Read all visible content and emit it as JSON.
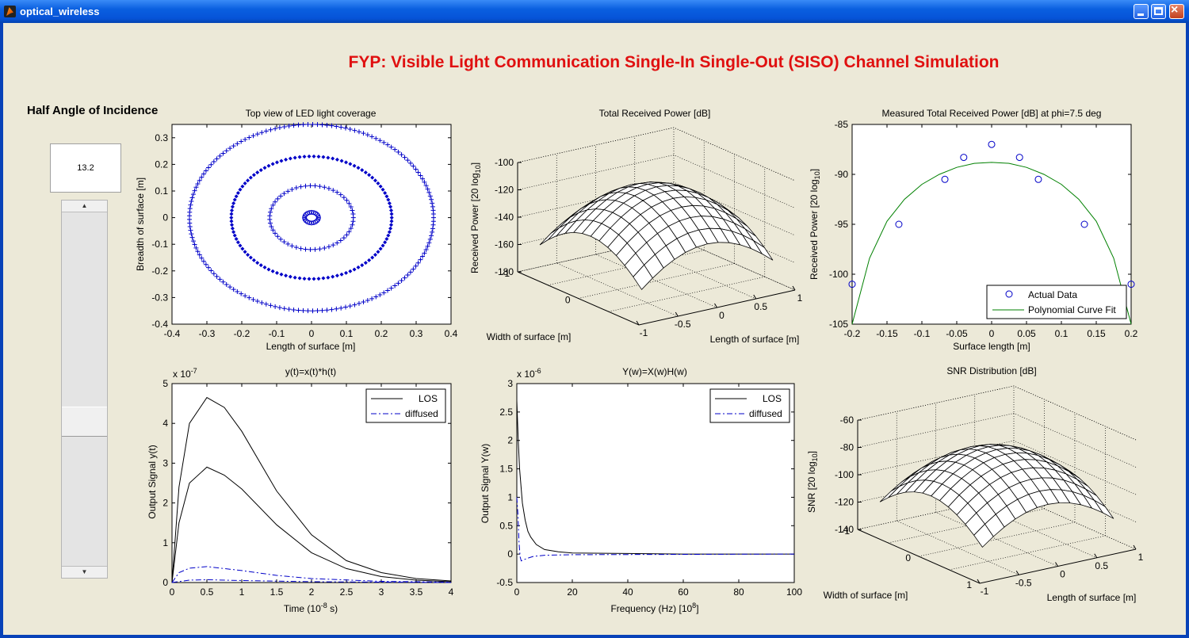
{
  "window": {
    "title": "optical_wireless"
  },
  "header": {
    "title": "FYP: Visible Light Communication Single-In Single-Out (SISO) Channel Simulation"
  },
  "controls": {
    "half_angle_label": "Half Angle of Incidence",
    "half_angle_value": "13.2",
    "slider_up": "▲",
    "slider_down": "▼"
  },
  "colors": {
    "title": "#e01010",
    "marker": "#0000c8",
    "fit_line": "#008000",
    "background": "#ece9d8"
  },
  "plots": {
    "coverage": {
      "title": "Top view of LED light coverage",
      "xlabel": "Length of surface [m]",
      "ylabel": "Breadth of surface [m]",
      "xticks": [
        "-0.4",
        "-0.3",
        "-0.2",
        "-0.1",
        "0",
        "0.1",
        "0.2",
        "0.3",
        "0.4"
      ],
      "yticks": [
        "0.3",
        "0.2",
        "0.1",
        "0",
        "-0.1",
        "-0.2",
        "-0.3",
        "-0.4"
      ]
    },
    "total_power": {
      "title": "Total Received Power [dB]",
      "ylabel": "Received Power [20 log",
      "ylabel_sub": "10",
      "ylabel_end": "]",
      "xlabel": "Length of surface [m]",
      "wlabel": "Width of surface [m]",
      "zticks": [
        "-100",
        "-120",
        "-140",
        "-160",
        "-180"
      ],
      "xticks": [
        "1",
        "0.5",
        "0",
        "-0.5",
        "-1"
      ],
      "wticks": [
        "0",
        "-1"
      ]
    },
    "measured": {
      "title": "Measured Total Received Power [dB] at phi=7.5 deg",
      "xlabel": "Surface length [m]",
      "ylabel": "Received Power [20 log",
      "ylabel_sub": "10",
      "ylabel_end": "]",
      "xticks": [
        "-0.2",
        "-0.15",
        "-0.1",
        "-0.05",
        "0",
        "0.05",
        "0.1",
        "0.15",
        "0.2"
      ],
      "yticks": [
        "-85",
        "-90",
        "-95",
        "-100",
        "-105"
      ],
      "legend": [
        "Actual Data",
        "Polynomial Curve Fit"
      ]
    },
    "time": {
      "title": "y(t)=x(t)*h(t)",
      "xlabel": "Time (10",
      "xlabel_sup": "-8",
      "xlabel_end": " s)",
      "ylabel": "Output Signal y(t)",
      "exp_base": "x 10",
      "exp": "-7",
      "xticks": [
        "0",
        "0.5",
        "1",
        "1.5",
        "2",
        "2.5",
        "3",
        "3.5",
        "4"
      ],
      "yticks": [
        "5",
        "4",
        "3",
        "2",
        "1",
        "0"
      ],
      "legend": [
        "LOS",
        "diffused"
      ]
    },
    "freq": {
      "title": "Y(w)=X(w)H(w)",
      "xlabel": "Frequency (Hz) [10",
      "xlabel_sup": "8",
      "xlabel_end": "]",
      "ylabel": "Output Signal Y(w)",
      "exp_base": "x 10",
      "exp": "-6",
      "xticks": [
        "0",
        "20",
        "40",
        "60",
        "80",
        "100"
      ],
      "yticks": [
        "3",
        "2.5",
        "2",
        "1.5",
        "1",
        "0.5",
        "0",
        "-0.5"
      ],
      "legend": [
        "LOS",
        "diffused"
      ]
    },
    "snr": {
      "title": "SNR Distribution [dB]",
      "ylabel": "SNR [20 log",
      "ylabel_sub": "10",
      "ylabel_end": "]",
      "xlabel": "Length of surface [m]",
      "wlabel": "Width of surface [m]",
      "zticks": [
        "-60",
        "-80",
        "-100",
        "-120",
        "-140"
      ],
      "xticks": [
        "1",
        "0.5",
        "0",
        "-0.5",
        "-1"
      ],
      "wticks": [
        "1",
        "0",
        "-1"
      ]
    }
  },
  "chart_data": [
    {
      "type": "scatter",
      "title": "Top view of LED light coverage",
      "xlabel": "Length of surface [m]",
      "ylabel": "Breadth of surface [m]",
      "xlim": [
        -0.4,
        0.4
      ],
      "ylim": [
        -0.4,
        0.35
      ],
      "series": [
        {
          "marker": "circle",
          "radius": 0.02
        },
        {
          "marker": "plus",
          "radius": 0.12
        },
        {
          "marker": "diamond",
          "radius": 0.23
        },
        {
          "marker": "plus",
          "radius": 0.35
        }
      ]
    },
    {
      "type": "surface",
      "title": "Total Received Power [dB]",
      "zlim": [
        -180,
        -100
      ],
      "xlim": [
        -1,
        1
      ],
      "ylim": [
        -1,
        1
      ]
    },
    {
      "type": "scatter",
      "title": "Measured Total Received Power [dB] at phi=7.5 deg",
      "xlabel": "Surface length [m]",
      "xlim": [
        -0.2,
        0.2
      ],
      "ylim": [
        -105,
        -85
      ],
      "series": [
        {
          "name": "Actual Data",
          "x": [
            -0.2,
            -0.133,
            -0.067,
            -0.04,
            0,
            0.04,
            0.067,
            0.133,
            0.2
          ],
          "y": [
            -101,
            -95,
            -90.5,
            -88.3,
            -87,
            -88.3,
            -90.5,
            -95,
            -101
          ]
        },
        {
          "name": "Polynomial Curve Fit",
          "type": "line",
          "x": [
            -0.2,
            -0.175,
            -0.15,
            -0.125,
            -0.1,
            -0.075,
            -0.05,
            -0.025,
            0,
            0.025,
            0.05,
            0.075,
            0.1,
            0.125,
            0.15,
            0.175,
            0.2
          ],
          "y": [
            -105,
            -98.4,
            -94.7,
            -92.5,
            -91,
            -90,
            -89.3,
            -88.9,
            -88.8,
            -88.9,
            -89.3,
            -90,
            -91,
            -92.5,
            -94.7,
            -98.4,
            -105
          ]
        }
      ]
    },
    {
      "type": "line",
      "title": "y(t)=x(t)*h(t)",
      "xlim": [
        0,
        4
      ],
      "ylim": [
        0,
        5
      ],
      "y_multiplier": "1e-7",
      "series": [
        {
          "name": "LOS",
          "x": [
            0,
            0.1,
            0.25,
            0.5,
            0.75,
            1,
            1.5,
            2,
            2.5,
            3,
            3.5,
            4
          ],
          "y": [
            0,
            2.4,
            4.0,
            4.65,
            4.4,
            3.8,
            2.3,
            1.2,
            0.55,
            0.25,
            0.1,
            0.04
          ]
        },
        {
          "name": "LOS",
          "x": [
            0,
            0.1,
            0.25,
            0.5,
            0.75,
            1,
            1.5,
            2,
            2.5,
            3,
            3.5,
            4
          ],
          "y": [
            0,
            1.5,
            2.5,
            2.9,
            2.7,
            2.35,
            1.45,
            0.75,
            0.35,
            0.15,
            0.06,
            0.02
          ]
        },
        {
          "name": "diffused",
          "x": [
            0,
            0.1,
            0.25,
            0.5,
            1,
            1.5,
            2,
            3,
            4
          ],
          "y": [
            0,
            0.25,
            0.36,
            0.4,
            0.3,
            0.18,
            0.1,
            0.03,
            0.01
          ]
        },
        {
          "name": "diffused",
          "x": [
            0,
            0.25,
            0.5,
            1,
            2,
            3,
            4
          ],
          "y": [
            0,
            0.06,
            0.07,
            0.05,
            0.02,
            0.01,
            0
          ]
        }
      ]
    },
    {
      "type": "line",
      "title": "Y(w)=X(w)H(w)",
      "xlim": [
        0,
        100
      ],
      "ylim": [
        -0.5,
        3
      ],
      "y_multiplier": "1e-6",
      "series": [
        {
          "name": "LOS",
          "x": [
            0,
            0.5,
            1,
            2,
            3,
            4,
            5,
            7,
            10,
            15,
            20,
            40,
            60,
            80,
            100
          ],
          "y": [
            2.7,
            2.0,
            1.5,
            0.9,
            0.6,
            0.4,
            0.3,
            0.17,
            0.08,
            0.04,
            0.02,
            0.01,
            0,
            0,
            0
          ]
        },
        {
          "name": "diffused",
          "x": [
            0,
            0.4,
            0.8,
            1.2,
            1.6,
            2.5,
            4,
            6,
            10,
            20,
            100
          ],
          "y": [
            1.0,
            0.7,
            0.2,
            -0.05,
            -0.12,
            -0.1,
            -0.07,
            -0.04,
            -0.02,
            -0.01,
            0
          ]
        }
      ]
    },
    {
      "type": "surface",
      "title": "SNR Distribution [dB]",
      "zlim": [
        -140,
        -60
      ],
      "xlim": [
        -1,
        1
      ],
      "ylim": [
        -1,
        1
      ]
    }
  ]
}
